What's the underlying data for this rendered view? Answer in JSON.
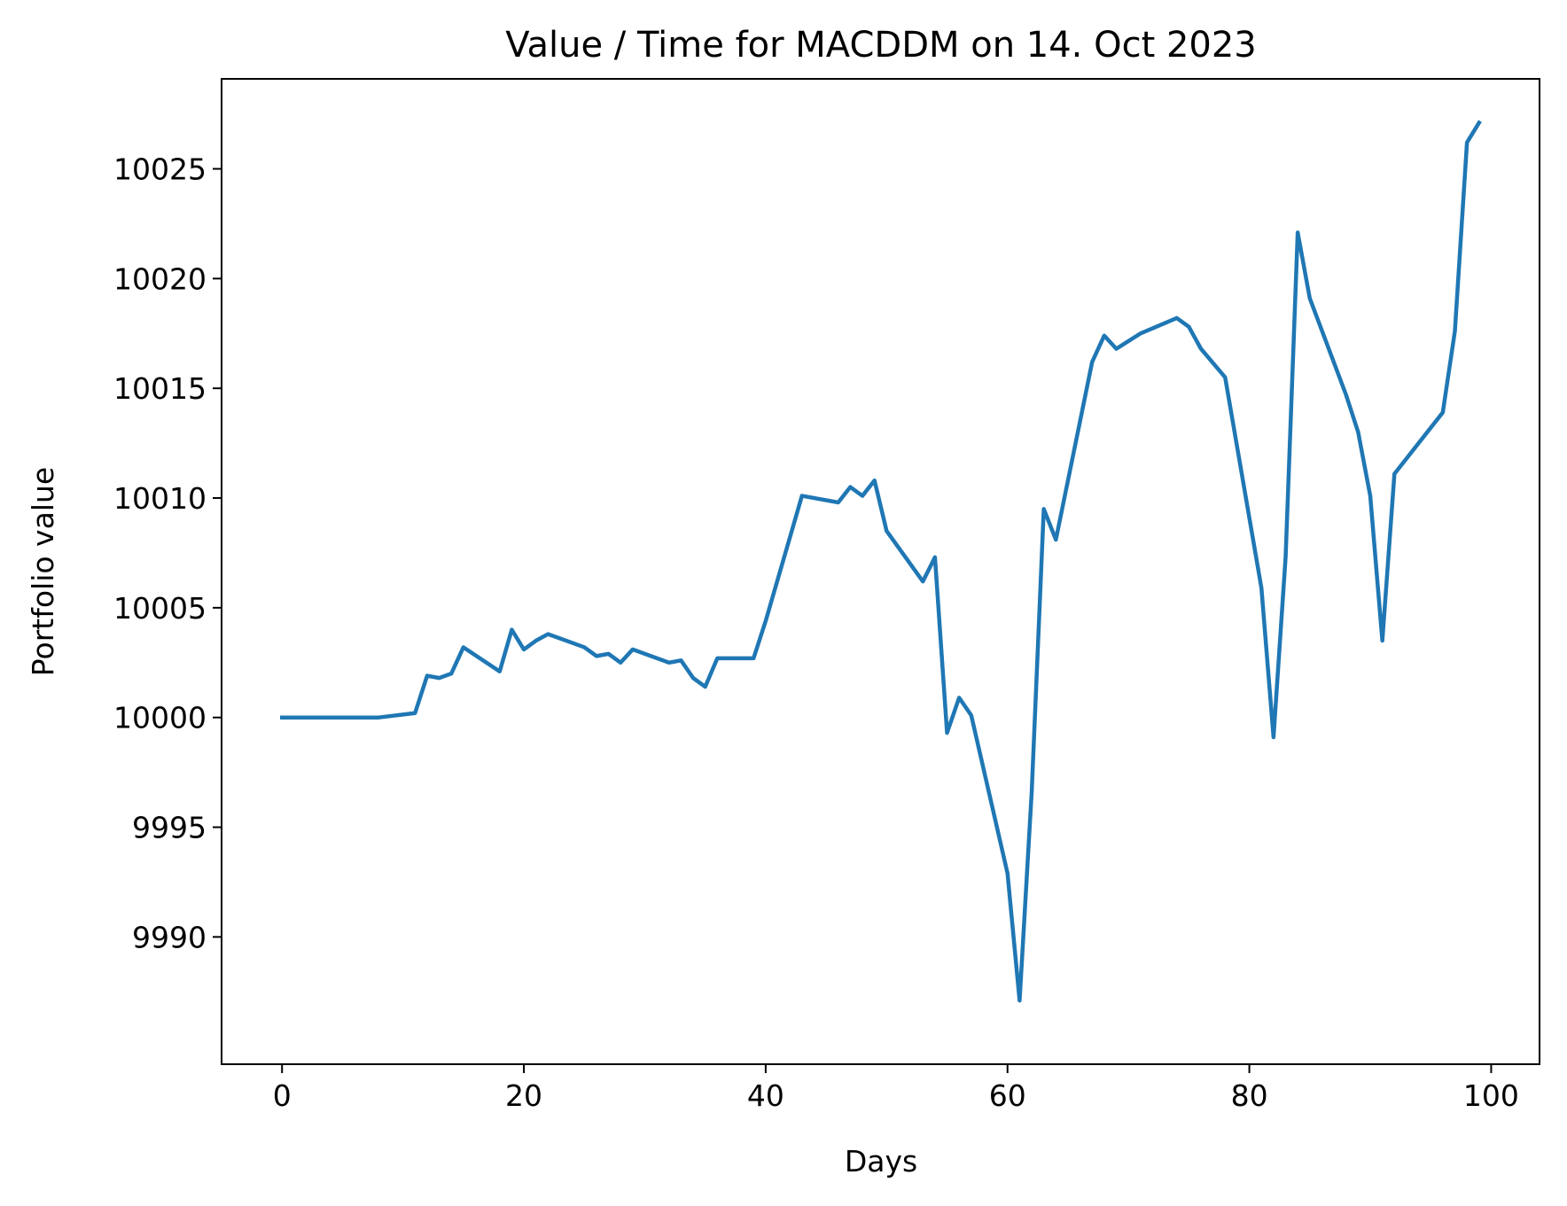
{
  "chart_data": {
    "type": "line",
    "title": "Value / Time for MACDDM on 14. Oct 2023",
    "xlabel": "Days",
    "ylabel": "Portfolio value",
    "xlim": [
      -5,
      104
    ],
    "ylim": [
      9984.2,
      10029.1
    ],
    "xticks": [
      0,
      20,
      40,
      60,
      80,
      100
    ],
    "yticks": [
      9990,
      9995,
      10000,
      10005,
      10010,
      10015,
      10020,
      10025
    ],
    "grid": false,
    "series": [
      {
        "color": "#1f77b4",
        "x": [
          0,
          8,
          11,
          12,
          13,
          14,
          15,
          18,
          19,
          20,
          21,
          22,
          25,
          26,
          27,
          28,
          29,
          32,
          33,
          34,
          35,
          36,
          39,
          40,
          43,
          46,
          47,
          48,
          49,
          50,
          53,
          54,
          55,
          56,
          57,
          60,
          61,
          62,
          63,
          64,
          67,
          68,
          69,
          71,
          74,
          75,
          76,
          78,
          81,
          82,
          83,
          84,
          85,
          88,
          89,
          90,
          91,
          92,
          96,
          97,
          98,
          99
        ],
        "y": [
          10000,
          10000,
          10000.2,
          10001.9,
          10001.8,
          10002,
          10003.2,
          10002.1,
          10004,
          10003.1,
          10003.5,
          10003.8,
          10003.2,
          10002.8,
          10002.9,
          10002.5,
          10003.1,
          10002.5,
          10002.6,
          10001.8,
          10001.4,
          10002.7,
          10002.7,
          10004.4,
          10010.1,
          10009.8,
          10010.5,
          10010.1,
          10010.8,
          10008.5,
          10006.2,
          10007.3,
          9999.3,
          10000.9,
          10000.1,
          9992.9,
          9987.1,
          9996.6,
          10009.5,
          10008.1,
          10016.2,
          10017.4,
          10016.8,
          10017.5,
          10018.2,
          10017.8,
          10016.8,
          10015.5,
          10005.9,
          9999.1,
          10007.3,
          10022.1,
          10019.1,
          10014.7,
          10013,
          10010.1,
          10003.5,
          10011.1,
          10013.9,
          10017.6,
          10026.2,
          10027.1
        ]
      }
    ]
  }
}
